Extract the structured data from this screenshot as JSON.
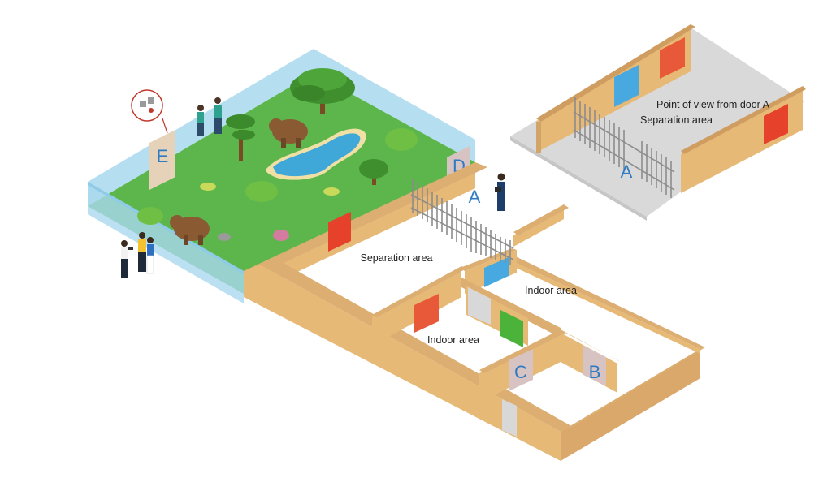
{
  "colors": {
    "wall_top": "#dcae72",
    "wall_side": "#e7b977",
    "grass": "#5cb64c",
    "glass": "#a9d8ef",
    "floor": "#dcdcdc",
    "pool": "#3fa8d8",
    "door_label": "#2f7bc3",
    "door_red": "#e5412b",
    "door_orange": "#e8593a",
    "door_blue": "#48a9e1",
    "door_green": "#4bb33a",
    "door_grey": "#d8d8d8",
    "gate": "#8c8c8c"
  },
  "labels": {
    "point_of_view": "Point of view from door A",
    "separation_inset": "Separation area",
    "separation_main": "Separation area",
    "indoor_right": "Indoor area",
    "indoor_left": "Indoor area"
  },
  "doors": {
    "a_main": "A",
    "a_inset": "A",
    "b": "B",
    "c": "C",
    "d": "D",
    "e": "E"
  },
  "icons": [
    "bear-icon",
    "tree-icon",
    "bush-icon",
    "pool-icon",
    "person-icon",
    "camera-icon",
    "key-lock-icon",
    "gate-icon"
  ]
}
